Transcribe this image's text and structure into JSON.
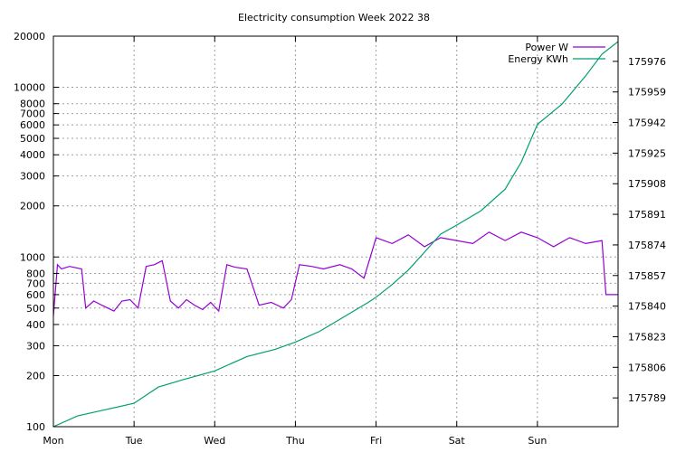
{
  "chart_data": {
    "type": "line",
    "title": "Electricity consumption Week 2022 38",
    "xlabel": "",
    "ylabel": "",
    "x_ticks": [
      "Mon",
      "Tue",
      "Wed",
      "Thu",
      "Fri",
      "Sat",
      "Sun"
    ],
    "x_range_days": [
      0,
      7
    ],
    "y_left": {
      "scale": "log",
      "range": [
        100,
        20000
      ],
      "ticks": [
        100,
        200,
        300,
        400,
        500,
        600,
        700,
        800,
        1000,
        2000,
        3000,
        4000,
        5000,
        6000,
        7000,
        8000,
        10000,
        20000
      ],
      "tick_labels": [
        "100",
        "200",
        "300",
        "400",
        "500",
        "600",
        "700",
        "800",
        "1000",
        "2000",
        "3000",
        "4000",
        "5000",
        "6000",
        "7000",
        "8000",
        "10000",
        "20000"
      ]
    },
    "y_right": {
      "scale": "linear",
      "range": [
        175773,
        175990
      ],
      "ticks": [
        175789,
        175806,
        175823,
        175840,
        175857,
        175874,
        175891,
        175908,
        175925,
        175942,
        175959,
        175976
      ],
      "tick_labels": [
        "175789",
        "175806",
        "175823",
        "175840",
        "175857",
        "175874",
        "175891",
        "175908",
        "175925",
        "175942",
        "175959",
        "175976"
      ]
    },
    "grid": true,
    "legend_position": "top-right",
    "series": [
      {
        "name": "Power W",
        "axis": "left",
        "color": "#9400d3",
        "points": [
          [
            0.0,
            450
          ],
          [
            0.05,
            900
          ],
          [
            0.1,
            850
          ],
          [
            0.2,
            880
          ],
          [
            0.35,
            850
          ],
          [
            0.4,
            500
          ],
          [
            0.5,
            550
          ],
          [
            0.6,
            520
          ],
          [
            0.75,
            480
          ],
          [
            0.85,
            550
          ],
          [
            0.95,
            560
          ],
          [
            1.05,
            500
          ],
          [
            1.15,
            880
          ],
          [
            1.25,
            900
          ],
          [
            1.35,
            950
          ],
          [
            1.45,
            550
          ],
          [
            1.55,
            500
          ],
          [
            1.65,
            560
          ],
          [
            1.75,
            520
          ],
          [
            1.85,
            490
          ],
          [
            1.95,
            540
          ],
          [
            2.05,
            480
          ],
          [
            2.15,
            900
          ],
          [
            2.25,
            870
          ],
          [
            2.4,
            850
          ],
          [
            2.55,
            520
          ],
          [
            2.7,
            540
          ],
          [
            2.85,
            500
          ],
          [
            2.95,
            560
          ],
          [
            3.05,
            900
          ],
          [
            3.2,
            880
          ],
          [
            3.35,
            850
          ],
          [
            3.55,
            900
          ],
          [
            3.7,
            850
          ],
          [
            3.85,
            750
          ],
          [
            4.0,
            1300
          ],
          [
            4.2,
            1200
          ],
          [
            4.4,
            1350
          ],
          [
            4.6,
            1150
          ],
          [
            4.8,
            1300
          ],
          [
            5.0,
            1250
          ],
          [
            5.2,
            1200
          ],
          [
            5.4,
            1400
          ],
          [
            5.6,
            1250
          ],
          [
            5.8,
            1400
          ],
          [
            6.0,
            1300
          ],
          [
            6.2,
            1150
          ],
          [
            6.4,
            1300
          ],
          [
            6.6,
            1200
          ],
          [
            6.8,
            1250
          ],
          [
            6.85,
            600
          ],
          [
            7.0,
            600
          ]
        ]
      },
      {
        "name": "Energy KWh",
        "axis": "right",
        "color": "#009e73",
        "points": [
          [
            0.0,
            175773
          ],
          [
            0.3,
            175779
          ],
          [
            0.6,
            175782
          ],
          [
            1.0,
            175786
          ],
          [
            1.3,
            175795
          ],
          [
            1.6,
            175799
          ],
          [
            2.0,
            175804
          ],
          [
            2.4,
            175812
          ],
          [
            2.75,
            175816
          ],
          [
            3.0,
            175820
          ],
          [
            3.3,
            175826
          ],
          [
            3.6,
            175834
          ],
          [
            3.9,
            175842
          ],
          [
            4.0,
            175845
          ],
          [
            4.2,
            175852
          ],
          [
            4.4,
            175860
          ],
          [
            4.6,
            175870
          ],
          [
            4.8,
            175880
          ],
          [
            5.0,
            175885
          ],
          [
            5.3,
            175893
          ],
          [
            5.6,
            175905
          ],
          [
            5.8,
            175920
          ],
          [
            6.0,
            175941
          ],
          [
            6.3,
            175952
          ],
          [
            6.6,
            175968
          ],
          [
            6.8,
            175980
          ],
          [
            7.0,
            175987
          ]
        ]
      }
    ]
  }
}
